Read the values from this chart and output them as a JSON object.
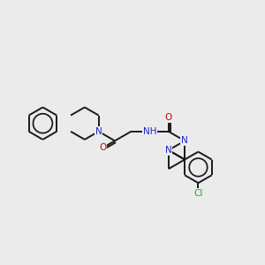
{
  "background_color": "#ebebeb",
  "bond_color": "#1a1a1a",
  "atom_colors": {
    "N": "#2222cc",
    "O": "#cc0000",
    "Cl": "#22aa22",
    "C": "#1a1a1a"
  },
  "figsize": [
    3.0,
    3.0
  ],
  "dpi": 100,
  "bond_lw": 1.4,
  "font_size": 7.5
}
